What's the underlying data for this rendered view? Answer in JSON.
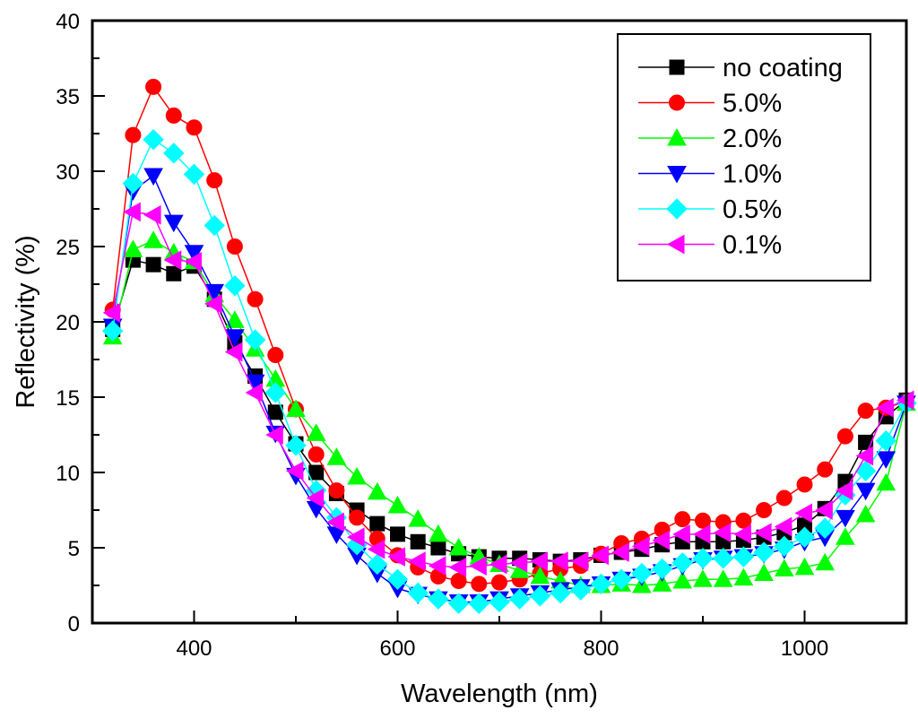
{
  "chart_data": {
    "type": "line",
    "title": "",
    "xlabel": "Wavelength (nm)",
    "ylabel": "Reflectivity (%)",
    "xlim": [
      300,
      1100
    ],
    "ylim": [
      0,
      40
    ],
    "xticks": [
      400,
      600,
      800,
      1000
    ],
    "xtick_labels": [
      "400",
      "600",
      "800",
      "1000"
    ],
    "xminor": [
      300,
      500,
      700,
      900,
      1100
    ],
    "yticks": [
      0,
      5,
      10,
      15,
      20,
      25,
      30,
      35,
      40
    ],
    "ytick_labels": [
      "0",
      "5",
      "10",
      "15",
      "20",
      "25",
      "30",
      "35",
      "40"
    ],
    "yminor": [
      2.5,
      7.5,
      12.5,
      17.5,
      22.5,
      27.5,
      32.5,
      37.5
    ],
    "grid": false,
    "legend_position": "top-right",
    "x": [
      320,
      340,
      360,
      380,
      400,
      420,
      440,
      460,
      480,
      500,
      520,
      540,
      560,
      580,
      600,
      620,
      640,
      660,
      680,
      700,
      720,
      740,
      760,
      780,
      800,
      820,
      840,
      860,
      880,
      900,
      920,
      940,
      960,
      980,
      1000,
      1020,
      1040,
      1060,
      1080,
      1100
    ],
    "series": [
      {
        "name": "no coating",
        "color": "#000000",
        "marker": "square",
        "values": [
          19.5,
          24.1,
          23.8,
          23.2,
          23.7,
          21.5,
          18.6,
          16.4,
          14.0,
          11.9,
          10.0,
          8.6,
          7.5,
          6.6,
          5.9,
          5.4,
          5.0,
          4.6,
          4.4,
          4.3,
          4.3,
          4.2,
          4.1,
          4.2,
          4.5,
          4.7,
          4.9,
          5.2,
          5.4,
          5.4,
          5.4,
          5.5,
          5.7,
          6.0,
          6.5,
          7.6,
          9.4,
          12.0,
          13.7,
          14.8
        ]
      },
      {
        "name": "5.0%",
        "color": "#ff0000",
        "marker": "circle",
        "values": [
          20.8,
          32.4,
          35.6,
          33.7,
          32.9,
          29.4,
          25.0,
          21.5,
          17.8,
          14.2,
          11.2,
          8.8,
          7.0,
          5.6,
          4.5,
          3.7,
          3.1,
          2.8,
          2.6,
          2.7,
          2.9,
          3.3,
          3.6,
          3.8,
          4.6,
          5.3,
          5.6,
          6.2,
          6.9,
          6.8,
          6.7,
          6.8,
          7.5,
          8.3,
          9.2,
          10.2,
          12.4,
          14.1,
          14.3,
          14.7
        ]
      },
      {
        "name": "2.0%",
        "color": "#00ff00",
        "marker": "triangle-up",
        "values": [
          19.0,
          24.8,
          25.4,
          24.6,
          24.0,
          21.8,
          20.1,
          18.2,
          16.2,
          14.2,
          12.6,
          11.0,
          9.7,
          8.7,
          7.8,
          6.9,
          5.9,
          5.0,
          4.4,
          3.9,
          3.5,
          3.1,
          2.8,
          2.5,
          2.5,
          2.6,
          2.5,
          2.6,
          2.8,
          2.9,
          2.9,
          3.0,
          3.3,
          3.6,
          3.7,
          4.0,
          5.7,
          7.2,
          9.3,
          14.6
        ]
      },
      {
        "name": "1.0%",
        "color": "#0000ff",
        "marker": "triangle-down",
        "values": [
          19.7,
          28.7,
          29.7,
          26.6,
          24.6,
          22.0,
          19.0,
          16.0,
          12.6,
          9.8,
          7.6,
          5.9,
          4.5,
          3.3,
          2.3,
          1.9,
          1.6,
          1.4,
          1.4,
          1.6,
          1.8,
          2.0,
          2.2,
          2.4,
          2.6,
          2.9,
          3.1,
          3.4,
          3.8,
          4.2,
          4.3,
          4.4,
          4.6,
          4.9,
          5.4,
          5.7,
          7.0,
          8.8,
          10.9,
          14.6
        ]
      },
      {
        "name": "0.5%",
        "color": "#00ffff",
        "marker": "diamond",
        "values": [
          19.4,
          29.2,
          32.1,
          31.2,
          29.8,
          26.4,
          22.4,
          18.8,
          15.3,
          11.8,
          8.8,
          7.0,
          5.2,
          3.9,
          2.9,
          2.0,
          1.6,
          1.3,
          1.3,
          1.4,
          1.6,
          1.8,
          2.0,
          2.2,
          2.6,
          2.9,
          3.3,
          3.6,
          4.0,
          4.3,
          4.3,
          4.4,
          4.7,
          5.1,
          5.7,
          6.3,
          8.5,
          10.1,
          12.1,
          14.6
        ]
      },
      {
        "name": "0.1%",
        "color": "#ff00ff",
        "marker": "triangle-left",
        "values": [
          20.6,
          27.3,
          27.1,
          24.1,
          24.0,
          21.2,
          18.0,
          15.3,
          12.5,
          10.1,
          8.3,
          6.7,
          5.7,
          4.9,
          4.4,
          4.1,
          3.8,
          3.7,
          3.8,
          3.9,
          4.0,
          4.1,
          4.1,
          4.1,
          4.5,
          4.7,
          5.1,
          5.5,
          5.9,
          5.9,
          6.0,
          5.9,
          6.0,
          6.4,
          7.3,
          7.5,
          8.8,
          11.1,
          14.3,
          14.8
        ]
      }
    ]
  }
}
